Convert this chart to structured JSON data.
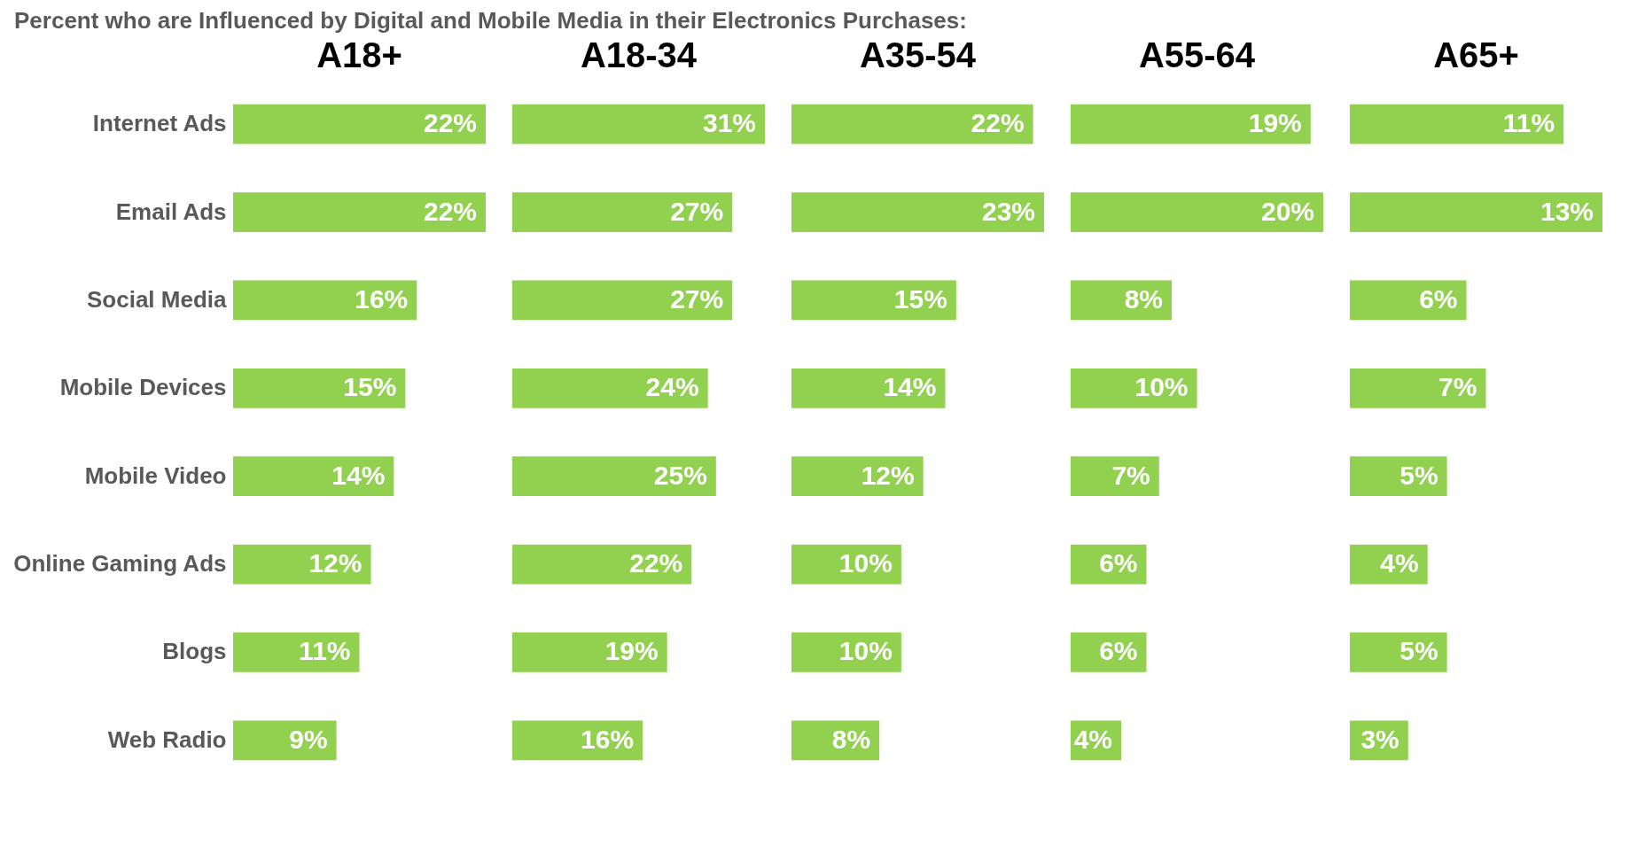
{
  "chart_data": [
    {
      "type": "bar",
      "orientation": "horizontal",
      "title": "A18+",
      "subtitle": "Percent who are Influenced by Digital and Mobile Media in their Electronics Purchases:",
      "tick_labels": "y",
      "categories": [
        "Internet Ads",
        "Email Ads",
        "Social Media",
        "Mobile Devices",
        "Mobile Video",
        "Online Gaming Ads",
        "Blogs",
        "Web Radio"
      ],
      "color": "#92d050",
      "values": [
        22,
        22,
        16,
        15,
        14,
        12,
        11,
        9
      ],
      "value_labels": [
        "22%",
        "22%",
        "16%",
        "15%",
        "14%",
        "12%",
        "11%",
        "9%"
      ]
    },
    {
      "type": "bar",
      "orientation": "horizontal",
      "title": "A18-34",
      "tick_labels": false,
      "categories": [
        null,
        null,
        null,
        null,
        null,
        null,
        null,
        null
      ],
      "color": "#92d050",
      "values": [
        31,
        27,
        27,
        24,
        25,
        22,
        19,
        16
      ],
      "value_labels": [
        "31%",
        "27%",
        "27%",
        "24%",
        "25%",
        "22%",
        "19%",
        "16%"
      ]
    },
    {
      "type": "bar",
      "orientation": "horizontal",
      "title": "A35-54",
      "tick_labels": false,
      "categories": [
        null,
        null,
        null,
        null,
        null,
        null,
        null,
        null
      ],
      "color": "#92d050",
      "values": [
        22,
        23,
        15,
        14,
        12,
        10,
        10,
        8
      ],
      "value_labels": [
        "22%",
        "23%",
        "15%",
        "14%",
        "12%",
        "10%",
        "10%",
        "8%"
      ]
    },
    {
      "type": "bar",
      "orientation": "horizontal",
      "title": "A55-64",
      "tick_labels": false,
      "categories": [
        null,
        null,
        null,
        null,
        null,
        null,
        null,
        null
      ],
      "color": "#92d050",
      "values": [
        19,
        20,
        8,
        10,
        7,
        6,
        6,
        4
      ],
      "value_labels": [
        "19%",
        "20%",
        "8%",
        "10%",
        "7%",
        "6%",
        "6%",
        "4%"
      ]
    },
    {
      "type": "bar",
      "orientation": "horizontal",
      "title": "A65+",
      "tick_labels": false,
      "categories": [
        null,
        null,
        null,
        null,
        null,
        null,
        null,
        null
      ],
      "color": "#92d050",
      "values": [
        11,
        13,
        6,
        7,
        5,
        4,
        5,
        3
      ],
      "value_labels": [
        "11%",
        "13%",
        "6%",
        "7%",
        "5%",
        "4%",
        "5%",
        "3%"
      ]
    }
  ]
}
